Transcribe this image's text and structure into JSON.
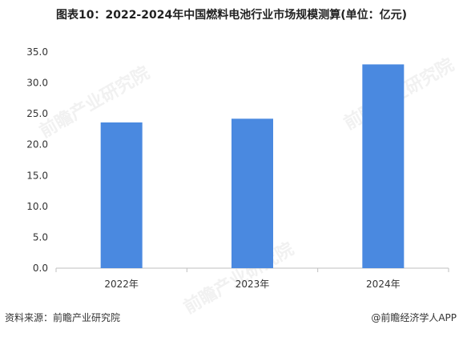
{
  "title": "图表10：2022-2024年中国燃料电池行业市场规模测算(单位：亿元)",
  "source_left": "资料来源：前瞻产业研究院",
  "source_right": "@前瞻经济学人APP",
  "watermark": "前瞻产业研究院",
  "colors": {
    "bar": "#4a89e0",
    "axis": "#bfbfbf",
    "text": "#333333"
  },
  "chart_data": {
    "type": "bar",
    "title": "图表10：2022-2024年中国燃料电池行业市场规模测算(单位：亿元)",
    "categories": [
      "2022年",
      "2023年",
      "2024年"
    ],
    "series": [
      {
        "values": [
          23.6,
          24.2,
          33.0
        ]
      }
    ],
    "ylim": [
      0,
      35
    ],
    "yticks": [
      "0.0",
      "5.0",
      "10.0",
      "15.0",
      "20.0",
      "25.0",
      "30.0",
      "35.0"
    ],
    "ytick_values": [
      0,
      5,
      10,
      15,
      20,
      25,
      30,
      35
    ],
    "xlabel": "",
    "ylabel": "",
    "grid": false
  }
}
